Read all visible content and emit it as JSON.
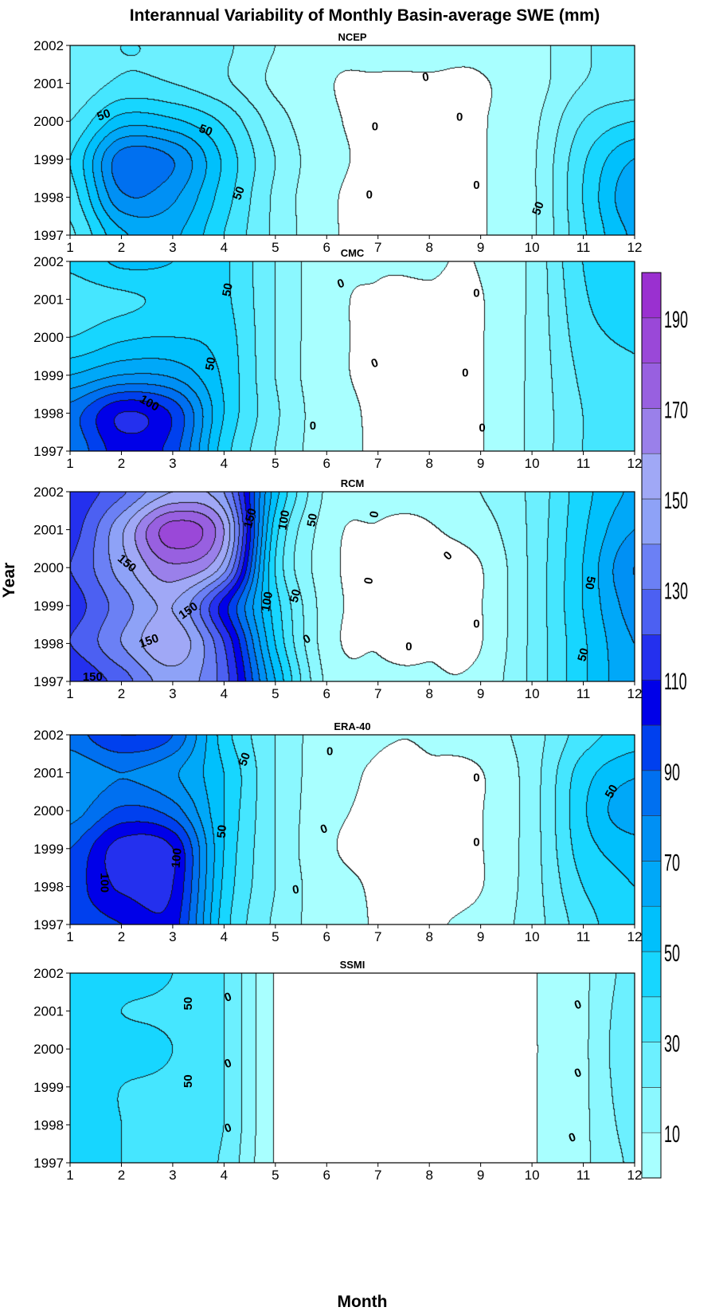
{
  "chart_data": {
    "type": "contour",
    "title": "Interannual Variability of Monthly Basin-average SWE (mm)",
    "xlabel": "Month",
    "ylabel": "Year",
    "xlim": [
      1,
      12
    ],
    "ylim": [
      1997,
      2002
    ],
    "x_ticks": [
      1,
      2,
      3,
      4,
      5,
      6,
      7,
      8,
      9,
      10,
      11,
      12
    ],
    "y_ticks": [
      1997,
      1998,
      1999,
      2000,
      2001,
      2002
    ],
    "contour_interval": 10,
    "panels": [
      {
        "name": "NCEP",
        "rows": [
          [
            28,
            58,
            62,
            40,
            18,
            2,
            0,
            0,
            0,
            8,
            38,
            62
          ],
          [
            35,
            78,
            72,
            45,
            18,
            2,
            0,
            0,
            0,
            8,
            40,
            68
          ],
          [
            40,
            85,
            80,
            48,
            20,
            3,
            0,
            0,
            0,
            8,
            38,
            60
          ],
          [
            30,
            55,
            52,
            38,
            15,
            2,
            0,
            0,
            0,
            7,
            30,
            40
          ],
          [
            22,
            32,
            30,
            22,
            8,
            1,
            0,
            0,
            0,
            5,
            20,
            25
          ],
          [
            25,
            30,
            28,
            22,
            10,
            2,
            2,
            2,
            2,
            6,
            18,
            28
          ]
        ],
        "contour_labels": [
          "50",
          "50",
          "50",
          "50",
          "0",
          "0",
          "0",
          "0",
          "0"
        ]
      },
      {
        "name": "CMC",
        "rows": [
          [
            82,
            105,
            95,
            45,
            20,
            4,
            0,
            0,
            0,
            12,
            30,
            35
          ],
          [
            85,
            110,
            98,
            50,
            22,
            4,
            0,
            0,
            0,
            12,
            30,
            36
          ],
          [
            60,
            70,
            68,
            48,
            20,
            3,
            0,
            0,
            0,
            12,
            32,
            38
          ],
          [
            40,
            48,
            50,
            45,
            20,
            3,
            0,
            0,
            0,
            12,
            35,
            42
          ],
          [
            35,
            38,
            42,
            42,
            20,
            3,
            0,
            0,
            0,
            12,
            38,
            48
          ],
          [
            42,
            52,
            50,
            42,
            20,
            3,
            1,
            1,
            1,
            12,
            40,
            45
          ]
        ],
        "contour_labels": [
          "100",
          "50",
          "50",
          "0",
          "0",
          "0",
          "0",
          "0",
          "0"
        ]
      },
      {
        "name": "RCM",
        "rows": [
          [
            110,
            125,
            145,
            125,
            60,
            8,
            2,
            1,
            3,
            22,
            48,
            68
          ],
          [
            120,
            140,
            158,
            120,
            50,
            5,
            0,
            0,
            0,
            22,
            48,
            70
          ],
          [
            115,
            135,
            150,
            105,
            45,
            5,
            0,
            0,
            0,
            22,
            50,
            75
          ],
          [
            120,
            145,
            168,
            145,
            40,
            4,
            0,
            0,
            0,
            22,
            50,
            80
          ],
          [
            115,
            148,
            185,
            160,
            45,
            5,
            0,
            0,
            5,
            22,
            48,
            70
          ],
          [
            112,
            128,
            150,
            140,
            55,
            8,
            3,
            3,
            10,
            22,
            46,
            62
          ]
        ],
        "contour_labels": [
          "150",
          "150",
          "150",
          "150",
          "150",
          "100",
          "100",
          "50",
          "50",
          "50",
          "50",
          "0",
          "0",
          "0",
          "0",
          "0",
          "0"
        ]
      },
      {
        "name": "ERA-40",
        "rows": [
          [
            95,
            100,
            105,
            45,
            18,
            5,
            0,
            0,
            3,
            15,
            35,
            48
          ],
          [
            95,
            112,
            110,
            48,
            20,
            4,
            0,
            0,
            0,
            15,
            40,
            50
          ],
          [
            90,
            115,
            110,
            50,
            20,
            2,
            0,
            0,
            0,
            15,
            45,
            55
          ],
          [
            75,
            92,
            85,
            50,
            20,
            3,
            0,
            0,
            0,
            15,
            48,
            68
          ],
          [
            72,
            80,
            72,
            50,
            20,
            4,
            0,
            0,
            0,
            15,
            45,
            58
          ],
          [
            85,
            100,
            90,
            45,
            20,
            4,
            1,
            1,
            5,
            15,
            35,
            45
          ]
        ],
        "contour_labels": [
          "100",
          "100",
          "50",
          "50",
          "50",
          "0",
          "0",
          "0",
          "0",
          "0"
        ]
      },
      {
        "name": "SSMI",
        "rows": [
          [
            42,
            40,
            38,
            28,
            0,
            0,
            0,
            0,
            0,
            0,
            8,
            22
          ],
          [
            42,
            40,
            38,
            30,
            0,
            0,
            0,
            0,
            0,
            0,
            8,
            25
          ],
          [
            42,
            40,
            38,
            30,
            0,
            0,
            0,
            0,
            0,
            0,
            8,
            28
          ],
          [
            42,
            42,
            40,
            30,
            0,
            0,
            0,
            0,
            0,
            0,
            8,
            30
          ],
          [
            42,
            40,
            38,
            30,
            0,
            0,
            0,
            0,
            0,
            0,
            8,
            28
          ],
          [
            42,
            42,
            40,
            30,
            0,
            0,
            0,
            0,
            0,
            0,
            8,
            25
          ]
        ],
        "contour_labels": [
          "50",
          "50",
          "0",
          "0",
          "0",
          "0",
          "0",
          "0"
        ]
      }
    ],
    "colorbar": {
      "min": 0,
      "max": 200,
      "ticks": [
        10,
        30,
        50,
        70,
        90,
        110,
        130,
        150,
        170,
        190
      ],
      "colors": [
        "#a8ffff",
        "#8bf8ff",
        "#6cf0ff",
        "#45e6ff",
        "#17d6ff",
        "#00c0fc",
        "#00a8f8",
        "#0090f4",
        "#0070f0",
        "#0040ee",
        "#0000e8",
        "#2430ee",
        "#4c60f2",
        "#6b80f5",
        "#8ea2f7",
        "#a0a8f6",
        "#9a80ea",
        "#9860e0",
        "#9a48d8",
        "#9a30d0"
      ]
    }
  }
}
